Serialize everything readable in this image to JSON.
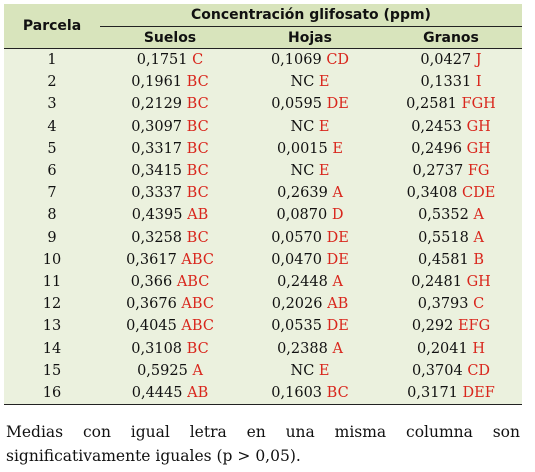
{
  "header": {
    "parcela": "Parcela",
    "group": "Concentración glifosato (ppm)",
    "suelos": "Suelos",
    "hojas": "Hojas",
    "granos": "Granos"
  },
  "rows": [
    {
      "parcela": "1",
      "suelos": {
        "v": "0,1751",
        "l": "C"
      },
      "hojas": {
        "v": "0,1069",
        "l": "CD"
      },
      "granos": {
        "v": "0,0427",
        "l": "J"
      }
    },
    {
      "parcela": "2",
      "suelos": {
        "v": "0,1961",
        "l": "BC"
      },
      "hojas": {
        "v": "NC",
        "l": "E"
      },
      "granos": {
        "v": "0,1331",
        "l": "I"
      }
    },
    {
      "parcela": "3",
      "suelos": {
        "v": "0,2129",
        "l": "BC"
      },
      "hojas": {
        "v": "0,0595",
        "l": "DE"
      },
      "granos": {
        "v": "0,2581",
        "l": "FGH"
      }
    },
    {
      "parcela": "4",
      "suelos": {
        "v": "0,3097",
        "l": "BC"
      },
      "hojas": {
        "v": "NC",
        "l": "E"
      },
      "granos": {
        "v": "0,2453",
        "l": "GH"
      }
    },
    {
      "parcela": "5",
      "suelos": {
        "v": "0,3317",
        "l": "BC"
      },
      "hojas": {
        "v": "0,0015",
        "l": "E"
      },
      "granos": {
        "v": "0,2496",
        "l": "GH"
      }
    },
    {
      "parcela": "6",
      "suelos": {
        "v": "0,3415",
        "l": "BC"
      },
      "hojas": {
        "v": "NC",
        "l": "E"
      },
      "granos": {
        "v": "0,2737",
        "l": "FG"
      }
    },
    {
      "parcela": "7",
      "suelos": {
        "v": "0,3337",
        "l": "BC"
      },
      "hojas": {
        "v": "0,2639",
        "l": "A"
      },
      "granos": {
        "v": "0,3408",
        "l": "CDE"
      }
    },
    {
      "parcela": "8",
      "suelos": {
        "v": "0,4395",
        "l": "AB"
      },
      "hojas": {
        "v": "0,0870",
        "l": "D"
      },
      "granos": {
        "v": "0,5352",
        "l": "A"
      }
    },
    {
      "parcela": "9",
      "suelos": {
        "v": "0,3258",
        "l": "BC"
      },
      "hojas": {
        "v": "0,0570",
        "l": "DE"
      },
      "granos": {
        "v": "0,5518",
        "l": "A"
      }
    },
    {
      "parcela": "10",
      "suelos": {
        "v": "0,3617",
        "l": "ABC"
      },
      "hojas": {
        "v": "0,0470",
        "l": "DE"
      },
      "granos": {
        "v": "0,4581",
        "l": "B"
      }
    },
    {
      "parcela": "11",
      "suelos": {
        "v": "0,366",
        "l": "ABC"
      },
      "hojas": {
        "v": "0,2448",
        "l": "A"
      },
      "granos": {
        "v": "0,2481",
        "l": "GH"
      }
    },
    {
      "parcela": "12",
      "suelos": {
        "v": "0,3676",
        "l": "ABC"
      },
      "hojas": {
        "v": "0,2026",
        "l": "AB"
      },
      "granos": {
        "v": "0,3793",
        "l": "C"
      }
    },
    {
      "parcela": "13",
      "suelos": {
        "v": "0,4045",
        "l": "ABC"
      },
      "hojas": {
        "v": "0,0535",
        "l": "DE"
      },
      "granos": {
        "v": "0,292",
        "l": "EFG"
      }
    },
    {
      "parcela": "14",
      "suelos": {
        "v": "0,3108",
        "l": "BC"
      },
      "hojas": {
        "v": "0,2388",
        "l": "A"
      },
      "granos": {
        "v": "0,2041",
        "l": "H"
      }
    },
    {
      "parcela": "15",
      "suelos": {
        "v": "0,5925",
        "l": "A"
      },
      "hojas": {
        "v": "NC",
        "l": "E"
      },
      "granos": {
        "v": "0,3704",
        "l": "CD"
      }
    },
    {
      "parcela": "16",
      "suelos": {
        "v": "0,4445",
        "l": "AB"
      },
      "hojas": {
        "v": "0,1603",
        "l": "BC"
      },
      "granos": {
        "v": "0,3171",
        "l": "DEF"
      }
    }
  ],
  "footnote": "Medias con igual letra en una misma columna son significativamente iguales (p > 0,05).",
  "colors": {
    "header_bg": "#d8e4bc",
    "body_bg": "#ebf1de",
    "letter": "#d9261c"
  }
}
